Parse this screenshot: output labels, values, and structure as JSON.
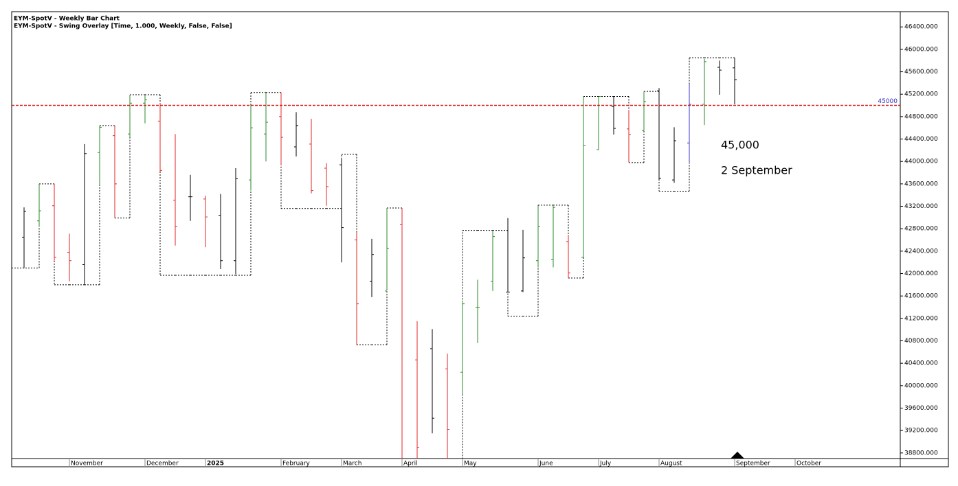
{
  "chart_data": {
    "type": "ohlc",
    "title": "EYM-SpotV - Weekly Bar Chart",
    "subtitle": "EYM-SpotV - Swing Overlay [Time, 1.000, Weekly, False, False]",
    "categories": [
      null,
      null,
      null,
      "November",
      null,
      null,
      null,
      null,
      "December",
      null,
      null,
      null,
      "2025",
      null,
      null,
      null,
      null,
      "February",
      null,
      null,
      null,
      "March",
      null,
      null,
      null,
      "April",
      null,
      null,
      null,
      "May",
      null,
      null,
      null,
      null,
      "June",
      null,
      null,
      null,
      "July",
      null,
      null,
      null,
      "August",
      null,
      null,
      null,
      null,
      "September",
      null,
      null,
      null,
      "October",
      null,
      null,
      null,
      null,
      null,
      null
    ],
    "open": [
      42650,
      42940,
      43210,
      42380,
      42160,
      44160,
      44460,
      44490,
      45040,
      44720,
      43310,
      43370,
      43330,
      43040,
      42230,
      43670,
      44490,
      44800,
      44260,
      44310,
      43880,
      43940,
      42600,
      41860,
      41690,
      42870,
      40460,
      40660,
      40300,
      40240,
      41400,
      41860,
      41670,
      41690,
      42230,
      42250,
      42570,
      42290,
      44210,
      44980,
      44580,
      44550,
      45260,
      43670,
      44330,
      45020,
      45680,
      45670,
      null,
      null,
      null,
      null,
      null,
      null,
      null,
      null,
      null,
      null
    ],
    "high": [
      43180,
      43600,
      43600,
      42710,
      44310,
      44640,
      44640,
      45190,
      45190,
      45040,
      44490,
      43760,
      43390,
      43420,
      43880,
      45010,
      45230,
      45230,
      44880,
      44760,
      43970,
      44040,
      42740,
      42620,
      43170,
      43170,
      41150,
      41010,
      40570,
      41520,
      41890,
      42760,
      42990,
      42780,
      43210,
      43210,
      42690,
      45160,
      45160,
      45160,
      44920,
      45250,
      45310,
      44610,
      45390,
      45830,
      45800,
      45830,
      null,
      null,
      null,
      null,
      null,
      null,
      null,
      null,
      null,
      null
    ],
    "low": [
      42100,
      42840,
      42230,
      41860,
      41800,
      43580,
      42990,
      44430,
      44680,
      43820,
      42500,
      42940,
      42470,
      42080,
      41990,
      43480,
      44000,
      43940,
      44090,
      43430,
      43210,
      42200,
      40730,
      41580,
      41720,
      38500,
      38500,
      39150,
      38500,
      39850,
      40760,
      41690,
      41670,
      41670,
      42110,
      42110,
      41920,
      42290,
      44210,
      44480,
      43990,
      44550,
      43670,
      43620,
      43990,
      44650,
      45190,
      45020,
      null,
      null,
      null,
      null,
      null,
      null,
      null,
      null,
      null,
      null
    ],
    "close": [
      43110,
      43120,
      42290,
      42230,
      44140,
      44610,
      43600,
      45040,
      45100,
      43840,
      42840,
      43370,
      43010,
      42230,
      43690,
      44600,
      44700,
      44430,
      44640,
      43480,
      43550,
      42820,
      41460,
      42340,
      42450,
      38600,
      38900,
      39420,
      39220,
      41460,
      41400,
      42660,
      41670,
      42280,
      42840,
      43180,
      42010,
      44290,
      45160,
      44590,
      44480,
      45070,
      43700,
      44370,
      45020,
      45780,
      45630,
      45460,
      null,
      null,
      null,
      null,
      null,
      null,
      null,
      null,
      null,
      null
    ],
    "colors": [
      "#000000",
      "#2a8a2a",
      "#e02626",
      "#e02626",
      "#000000",
      "#2a8a2a",
      "#e02626",
      "#2a8a2a",
      "#2a8a2a",
      "#e02626",
      "#e02626",
      "#000000",
      "#e02626",
      "#000000",
      "#000000",
      "#2a8a2a",
      "#2a8a2a",
      "#e02626",
      "#000000",
      "#e02626",
      "#e02626",
      "#000000",
      "#e02626",
      "#000000",
      "#2a8a2a",
      "#e02626",
      "#e02626",
      "#000000",
      "#e02626",
      "#2a8a2a",
      "#2a8a2a",
      "#2a8a2a",
      "#000000",
      "#000000",
      "#2a8a2a",
      "#2a8a2a",
      "#e02626",
      "#2a8a2a",
      "#2a8a2a",
      "#000000",
      "#e02626",
      "#2a8a2a",
      "#000000",
      "#000000",
      "#3a3ac8",
      "#2a8a2a",
      "#000000",
      "#000000",
      null,
      null,
      null,
      null,
      null,
      null,
      null,
      null,
      null,
      null
    ],
    "swing": [
      42100,
      43600,
      41800,
      41800,
      41800,
      44640,
      42990,
      45190,
      45190,
      41970,
      41970,
      41970,
      41970,
      41970,
      41970,
      45230,
      45230,
      43160,
      43160,
      43160,
      43160,
      44130,
      40730,
      40730,
      43170,
      38500,
      38500,
      38500,
      38500,
      42770,
      42770,
      42770,
      41240,
      41240,
      43220,
      43220,
      41920,
      45160,
      45160,
      45160,
      43980,
      45250,
      43470,
      43470,
      45850,
      45850,
      45850,
      45020,
      null,
      null,
      null,
      null,
      null,
      null,
      null,
      null,
      null,
      null
    ],
    "swing_color": "#000000",
    "ylim": [
      38700,
      46660
    ],
    "yticks": [
      {
        "value": 38800,
        "label": "38800.000"
      },
      {
        "value": 39200,
        "label": "39200.000"
      },
      {
        "value": 39600,
        "label": "39600.000"
      },
      {
        "value": 40000,
        "label": "40000.000"
      },
      {
        "value": 40400,
        "label": "40400.000"
      },
      {
        "value": 40800,
        "label": "40800.000"
      },
      {
        "value": 41200,
        "label": "41200.000"
      },
      {
        "value": 41600,
        "label": "41600.000"
      },
      {
        "value": 42000,
        "label": "42000.000"
      },
      {
        "value": 42400,
        "label": "42400.000"
      },
      {
        "value": 42800,
        "label": "42800.000"
      },
      {
        "value": 43200,
        "label": "43200.000"
      },
      {
        "value": 43600,
        "label": "43600.000"
      },
      {
        "value": 44000,
        "label": "44000.000"
      },
      {
        "value": 44400,
        "label": "44400.000"
      },
      {
        "value": 44800,
        "label": "44800.000"
      },
      {
        "value": 45200,
        "label": "45200.000"
      },
      {
        "value": 45600,
        "label": "45600.000"
      },
      {
        "value": 46000,
        "label": "46000.000"
      },
      {
        "value": 46400,
        "label": "46400.000"
      }
    ],
    "hline": {
      "value": 45000,
      "color": "#d42020",
      "label_color": "#3030c0"
    },
    "annotations": [
      "45,000",
      "2 September"
    ]
  }
}
